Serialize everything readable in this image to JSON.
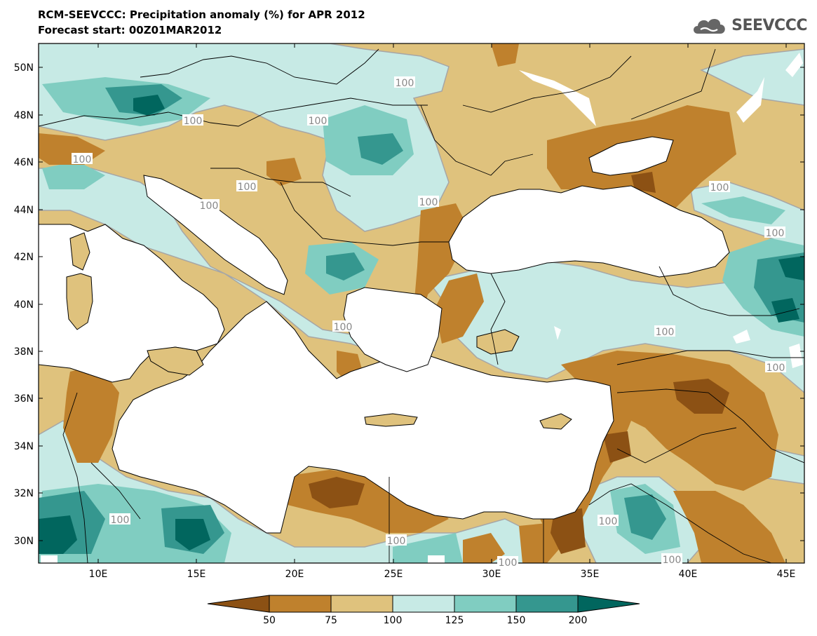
{
  "header": {
    "title_line1": "RCM-SEEVCCC: Precipitation anomaly (%) for APR 2012",
    "title_line2": "Forecast start: 00Z01MAR2012",
    "logo_text": "SEEVCCC"
  },
  "map": {
    "lat_labels": [
      "50N",
      "48N",
      "46N",
      "44N",
      "42N",
      "40N",
      "38N",
      "36N",
      "34N",
      "32N",
      "30N"
    ],
    "lon_labels": [
      "10E",
      "15E",
      "20E",
      "25E",
      "30E",
      "35E",
      "40E",
      "45E"
    ],
    "contour_labels": [
      "100",
      "100",
      "100",
      "100",
      "100",
      "100",
      "100",
      "100",
      "100",
      "100",
      "100",
      "100",
      "100",
      "100",
      "100",
      "100",
      "100"
    ]
  },
  "legend": {
    "ticks": [
      "50",
      "75",
      "100",
      "125",
      "150",
      "200"
    ],
    "colors": [
      "#8c5114",
      "#bf812d",
      "#dfc27d",
      "#c7eae5",
      "#80cdc1",
      "#35978f",
      "#01665e"
    ]
  }
}
